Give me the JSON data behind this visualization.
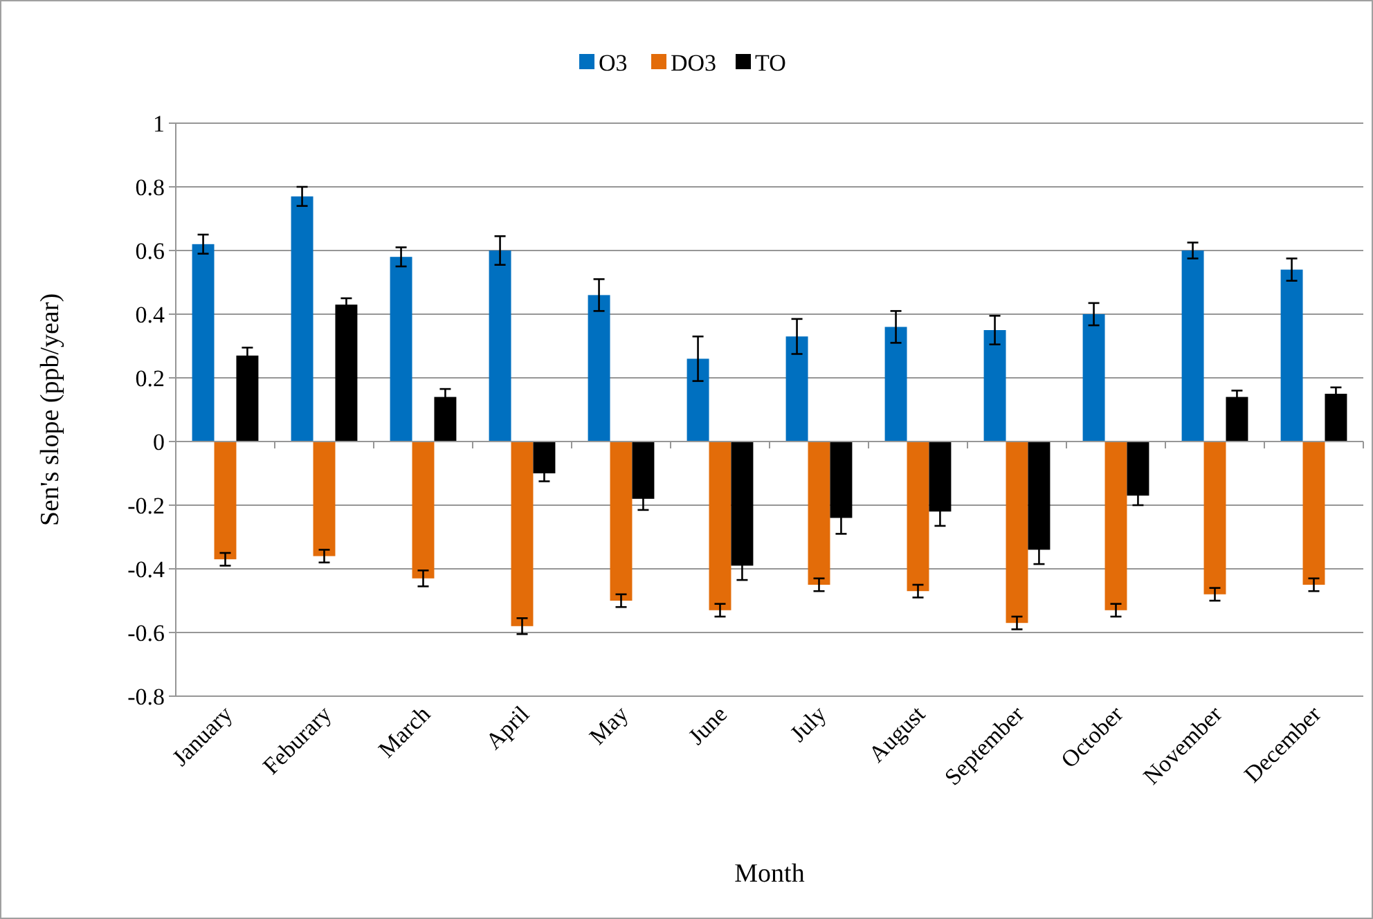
{
  "chart_data": {
    "type": "bar",
    "xlabel": "Month",
    "ylabel": "Sen's slope (ppb/year)",
    "categories": [
      "January",
      "Feburary",
      "March",
      "April",
      "May",
      "June",
      "July",
      "August",
      "September",
      "October",
      "November",
      "December"
    ],
    "series": [
      {
        "name": "O3",
        "color": "#0070c0",
        "values": [
          0.62,
          0.77,
          0.58,
          0.6,
          0.46,
          0.26,
          0.33,
          0.36,
          0.35,
          0.4,
          0.6,
          0.54
        ],
        "errors": [
          0.03,
          0.03,
          0.03,
          0.045,
          0.05,
          0.07,
          0.055,
          0.05,
          0.045,
          0.035,
          0.025,
          0.035
        ]
      },
      {
        "name": "DO3",
        "color": "#e36c09",
        "values": [
          -0.37,
          -0.36,
          -0.43,
          -0.58,
          -0.5,
          -0.53,
          -0.45,
          -0.47,
          -0.57,
          -0.53,
          -0.48,
          -0.45
        ],
        "errors": [
          0.02,
          0.02,
          0.025,
          0.025,
          0.02,
          0.02,
          0.02,
          0.02,
          0.02,
          0.02,
          0.02,
          0.02
        ]
      },
      {
        "name": "TO",
        "color": "#000000",
        "values": [
          0.27,
          0.43,
          0.14,
          -0.1,
          -0.18,
          -0.39,
          -0.24,
          -0.22,
          -0.34,
          -0.17,
          0.14,
          0.15
        ],
        "errors": [
          0.025,
          0.02,
          0.025,
          0.025,
          0.035,
          0.045,
          0.05,
          0.045,
          0.045,
          0.03,
          0.02,
          0.02
        ]
      }
    ],
    "ylim": [
      -0.8,
      1
    ],
    "yticks": [
      -0.8,
      -0.6,
      -0.4,
      -0.2,
      0,
      0.2,
      0.4,
      0.6,
      0.8,
      1
    ],
    "grid": "y",
    "legend": "top"
  }
}
